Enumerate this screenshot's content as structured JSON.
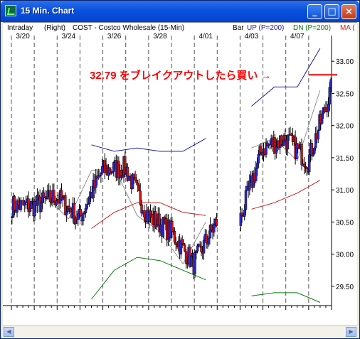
{
  "window": {
    "title": "15 Min. Chart",
    "minimize_glyph": "_",
    "maximize_glyph": "□",
    "close_glyph": "×",
    "icon": "chart-app-icon"
  },
  "header": {
    "intraday": "Intraday",
    "axis_side": "(Right)",
    "symbol": "COST - Costco Wholesale (15-Min)",
    "bar": "Bar",
    "up": "UP (P=200)",
    "dn": "DN (P=200)",
    "ma": "MA ("
  },
  "annotation": {
    "text": "32.79 をブレイクアウトしたら買い →",
    "color": "#ff0000"
  },
  "colors": {
    "up_band": "#1a1aa6",
    "dn_band": "#0a7a0a",
    "ma": "#c41e1e",
    "fast_ma": "#7a7a7a",
    "candle_up": "#2828d0",
    "candle_down": "#d01010",
    "grid": "#555555"
  },
  "chart_data": {
    "type": "candlestick",
    "x_tick_labels": [
      "3/20",
      "3/24",
      "3/26",
      "3/28",
      "4/01",
      "4/03",
      "4/07"
    ],
    "y_tick_labels": [
      "33.00",
      "32.50",
      "32.00",
      "31.50",
      "31.00",
      "30.50",
      "30.00",
      "29.50"
    ],
    "ylim": [
      29.2,
      33.4
    ],
    "days": 14,
    "breakout_level": 32.79,
    "grid": "vertical dashed",
    "close_by_day": [
      30.75,
      30.9,
      30.55,
      31.3,
      31.35,
      30.6,
      30.35,
      29.85,
      30.5,
      null,
      31.65,
      31.8,
      31.45,
      32.55
    ],
    "up_band_by_day": [
      null,
      null,
      null,
      31.7,
      31.6,
      31.65,
      31.6,
      31.6,
      31.8,
      null,
      32.3,
      32.6,
      32.6,
      33.2
    ],
    "dn_band_by_day": [
      null,
      null,
      null,
      29.3,
      29.75,
      29.95,
      29.9,
      29.75,
      29.6,
      null,
      29.35,
      29.4,
      29.4,
      29.25
    ],
    "ma_by_day": [
      null,
      null,
      null,
      30.4,
      30.65,
      30.8,
      30.8,
      30.65,
      30.6,
      null,
      30.7,
      30.8,
      30.95,
      31.15
    ]
  }
}
